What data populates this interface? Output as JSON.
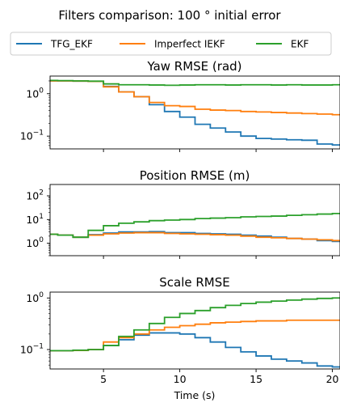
{
  "figure": {
    "suptitle": "Filters comparison: 100 ° initial error",
    "xlabel": "Time (s)",
    "legend": [
      {
        "name": "TFG_EKF",
        "color": "#1f77b4"
      },
      {
        "name": "Imperfect IEKF",
        "color": "#ff7f0e"
      },
      {
        "name": "EKF",
        "color": "#2ca02c"
      }
    ]
  },
  "chart_data": [
    {
      "type": "line",
      "title": "Yaw RMSE (rad)",
      "yscale": "log",
      "xlim": [
        1.5,
        20.5
      ],
      "ylim": [
        0.05,
        2.6
      ],
      "xticks": [
        5,
        10,
        15,
        20
      ],
      "yticks": [
        {
          "value": 1,
          "label": "10",
          "exp": "0"
        },
        {
          "value": 0.1,
          "label": "10",
          "exp": "−1"
        }
      ],
      "x": [
        1.5,
        2,
        3,
        4,
        5,
        6,
        7,
        8,
        9,
        10,
        11,
        12,
        13,
        14,
        15,
        16,
        17,
        18,
        19,
        20
      ],
      "series": [
        {
          "name": "TFG_EKF",
          "color": "#1f77b4",
          "values": [
            2.0,
            2.0,
            1.98,
            1.95,
            1.48,
            1.1,
            0.85,
            0.55,
            0.38,
            0.28,
            0.19,
            0.155,
            0.125,
            0.1,
            0.088,
            0.085,
            0.082,
            0.08,
            0.065,
            0.062
          ]
        },
        {
          "name": "Imperfect IEKF",
          "color": "#ff7f0e",
          "values": [
            2.0,
            2.0,
            1.98,
            1.95,
            1.45,
            1.1,
            0.85,
            0.62,
            0.52,
            0.5,
            0.43,
            0.41,
            0.4,
            0.38,
            0.37,
            0.36,
            0.35,
            0.34,
            0.33,
            0.32
          ]
        },
        {
          "name": "EKF",
          "color": "#2ca02c",
          "values": [
            2.05,
            2.03,
            2.0,
            1.97,
            1.7,
            1.62,
            1.62,
            1.6,
            1.58,
            1.6,
            1.62,
            1.62,
            1.6,
            1.62,
            1.62,
            1.6,
            1.62,
            1.6,
            1.6,
            1.62
          ]
        }
      ]
    },
    {
      "type": "line",
      "title": "Position RMSE (m)",
      "yscale": "log",
      "xlim": [
        1.5,
        20.5
      ],
      "ylim": [
        0.3,
        300
      ],
      "xticks": [
        5,
        10,
        15,
        20
      ],
      "yticks": [
        {
          "value": 100,
          "label": "10",
          "exp": "2"
        },
        {
          "value": 10,
          "label": "10",
          "exp": "1"
        },
        {
          "value": 1,
          "label": "10",
          "exp": "0"
        }
      ],
      "x": [
        1.5,
        2,
        3,
        4,
        5,
        6,
        7,
        8,
        9,
        10,
        11,
        12,
        13,
        14,
        15,
        16,
        17,
        18,
        19,
        20
      ],
      "series": [
        {
          "name": "TFG_EKF",
          "color": "#1f77b4",
          "values": [
            2.4,
            2.2,
            1.8,
            2.3,
            2.7,
            3.0,
            3.0,
            3.1,
            2.8,
            2.8,
            2.6,
            2.5,
            2.4,
            2.2,
            2.0,
            1.8,
            1.6,
            1.5,
            1.3,
            1.2
          ]
        },
        {
          "name": "Imperfect IEKF",
          "color": "#ff7f0e",
          "values": [
            2.4,
            2.2,
            1.8,
            2.2,
            2.5,
            2.7,
            2.8,
            2.8,
            2.6,
            2.5,
            2.4,
            2.3,
            2.2,
            2.0,
            1.8,
            1.7,
            1.6,
            1.5,
            1.4,
            1.3
          ]
        },
        {
          "name": "EKF",
          "color": "#2ca02c",
          "values": [
            2.4,
            2.2,
            1.8,
            3.5,
            5.5,
            7.0,
            8.0,
            9.0,
            9.5,
            10.0,
            11.0,
            11.5,
            12.0,
            13.0,
            13.5,
            14.0,
            15.0,
            16.0,
            17.0,
            18.0
          ]
        }
      ]
    },
    {
      "type": "line",
      "title": "Scale RMSE",
      "yscale": "log",
      "xlim": [
        1.5,
        20.5
      ],
      "ylim": [
        0.042,
        1.3
      ],
      "xticks": [
        5,
        10,
        15,
        20
      ],
      "yticks": [
        {
          "value": 1,
          "label": "10",
          "exp": "0"
        },
        {
          "value": 0.1,
          "label": "10",
          "exp": "−1"
        }
      ],
      "x": [
        1.5,
        2,
        3,
        4,
        5,
        6,
        7,
        8,
        9,
        10,
        11,
        12,
        13,
        14,
        15,
        16,
        17,
        18,
        19,
        20
      ],
      "series": [
        {
          "name": "TFG_EKF",
          "color": "#1f77b4",
          "values": [
            0.095,
            0.095,
            0.096,
            0.1,
            0.12,
            0.155,
            0.19,
            0.21,
            0.21,
            0.2,
            0.17,
            0.14,
            0.11,
            0.09,
            0.075,
            0.065,
            0.06,
            0.055,
            0.048,
            0.046
          ]
        },
        {
          "name": "Imperfect IEKF",
          "color": "#ff7f0e",
          "values": [
            0.095,
            0.095,
            0.096,
            0.1,
            0.14,
            0.17,
            0.2,
            0.24,
            0.27,
            0.29,
            0.31,
            0.33,
            0.34,
            0.35,
            0.36,
            0.36,
            0.37,
            0.37,
            0.37,
            0.37
          ]
        },
        {
          "name": "EKF",
          "color": "#2ca02c",
          "values": [
            0.095,
            0.095,
            0.097,
            0.1,
            0.12,
            0.18,
            0.24,
            0.32,
            0.42,
            0.5,
            0.57,
            0.65,
            0.72,
            0.78,
            0.83,
            0.87,
            0.91,
            0.95,
            0.98,
            1.0
          ]
        }
      ]
    }
  ]
}
